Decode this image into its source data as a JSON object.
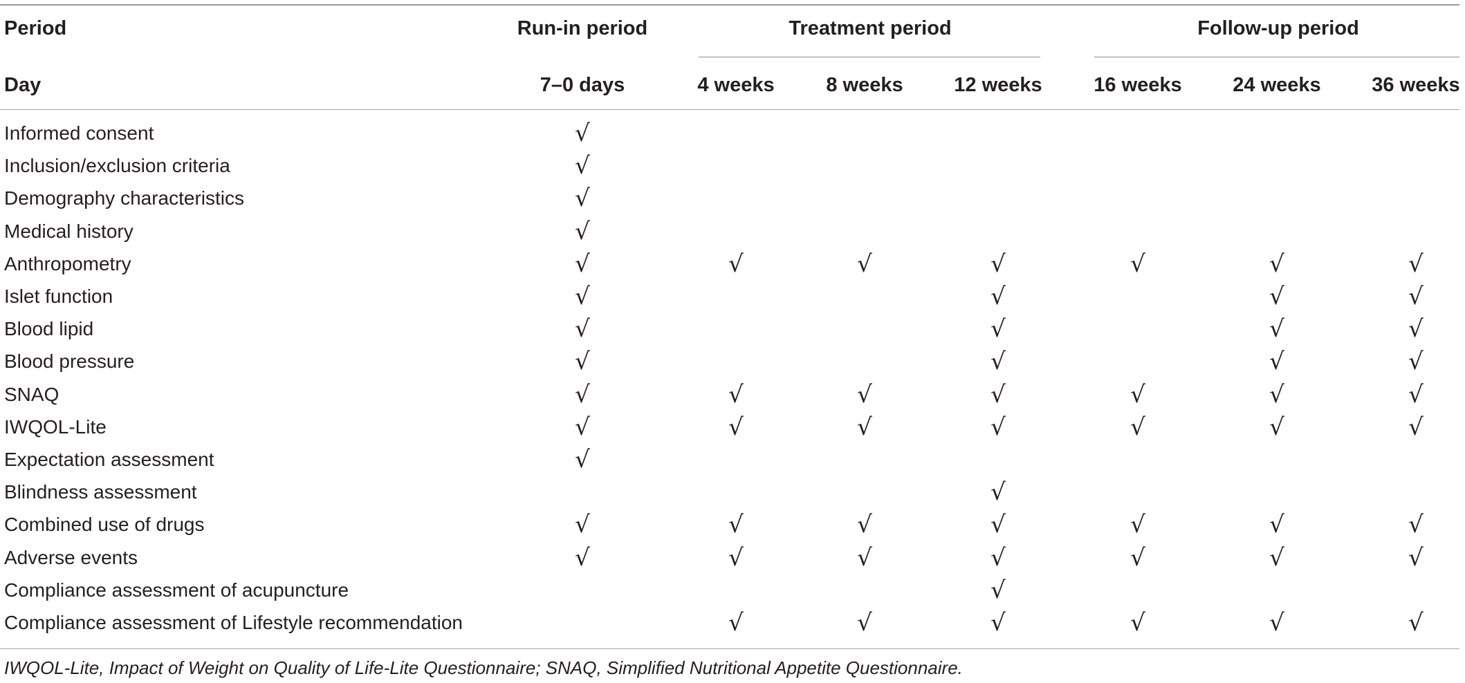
{
  "header": {
    "period_label": "Period",
    "day_label": "Day",
    "groups": [
      {
        "label": "Run-in period"
      },
      {
        "label": "Treatment period"
      },
      {
        "label": "Follow-up period"
      }
    ],
    "columns": [
      "7–0 days",
      "4 weeks",
      "8 weeks",
      "12 weeks",
      "16 weeks",
      "24 weeks",
      "36 weeks"
    ]
  },
  "check_symbol": "√",
  "rows": [
    {
      "label": "Informed consent",
      "checks": [
        1,
        0,
        0,
        0,
        0,
        0,
        0
      ]
    },
    {
      "label": "Inclusion/exclusion criteria",
      "checks": [
        1,
        0,
        0,
        0,
        0,
        0,
        0
      ]
    },
    {
      "label": "Demography characteristics",
      "checks": [
        1,
        0,
        0,
        0,
        0,
        0,
        0
      ]
    },
    {
      "label": "Medical history",
      "checks": [
        1,
        0,
        0,
        0,
        0,
        0,
        0
      ]
    },
    {
      "label": "Anthropometry",
      "checks": [
        1,
        1,
        1,
        1,
        1,
        1,
        1
      ]
    },
    {
      "label": "Islet function",
      "checks": [
        1,
        0,
        0,
        1,
        0,
        1,
        1
      ]
    },
    {
      "label": "Blood lipid",
      "checks": [
        1,
        0,
        0,
        1,
        0,
        1,
        1
      ]
    },
    {
      "label": "Blood pressure",
      "checks": [
        1,
        0,
        0,
        1,
        0,
        1,
        1
      ]
    },
    {
      "label": "SNAQ",
      "checks": [
        1,
        1,
        1,
        1,
        1,
        1,
        1
      ]
    },
    {
      "label": "IWQOL-Lite",
      "checks": [
        1,
        1,
        1,
        1,
        1,
        1,
        1
      ]
    },
    {
      "label": "Expectation assessment",
      "checks": [
        1,
        0,
        0,
        0,
        0,
        0,
        0
      ]
    },
    {
      "label": "Blindness assessment",
      "checks": [
        0,
        0,
        0,
        1,
        0,
        0,
        0
      ]
    },
    {
      "label": "Combined use of drugs",
      "checks": [
        1,
        1,
        1,
        1,
        1,
        1,
        1
      ]
    },
    {
      "label": "Adverse events",
      "checks": [
        1,
        1,
        1,
        1,
        1,
        1,
        1
      ]
    },
    {
      "label": "Compliance assessment of acupuncture",
      "checks": [
        0,
        0,
        0,
        1,
        0,
        0,
        0
      ]
    },
    {
      "label": "Compliance assessment of Lifestyle recommendation",
      "checks": [
        0,
        1,
        1,
        1,
        1,
        1,
        1
      ]
    }
  ],
  "footnote": "IWQOL-Lite, Impact of Weight on Quality of Life-Lite Questionnaire; SNAQ, Simplified Nutritional Appetite Questionnaire."
}
